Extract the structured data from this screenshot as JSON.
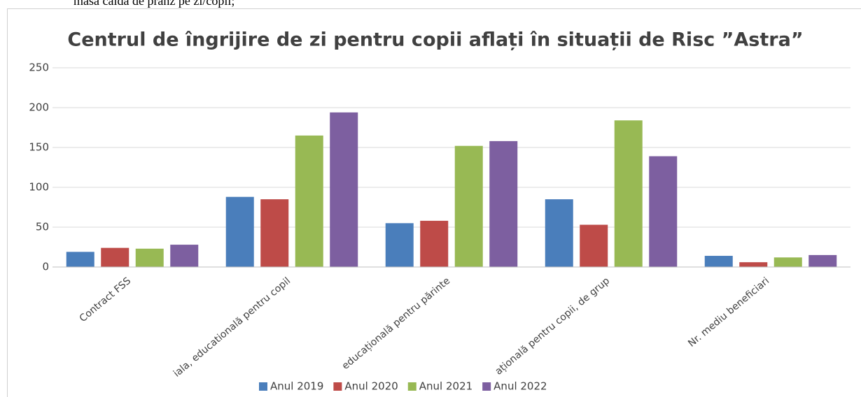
{
  "doc_text": "masa caldă de prânz pe zi/copil;",
  "chart_data": {
    "type": "bar",
    "title": "Centrul de îngrijire de zi pentru copii aflați în situații de Risc ”Astra”",
    "categories": [
      "Contract FSS",
      "iala, educatională pentru copil",
      "educațională pentru părinte",
      "ațională pentru copii, de grup",
      "Nr. mediu beneficiari"
    ],
    "series": [
      {
        "name": "Anul 2019",
        "color": "#4a7ebb",
        "values": [
          19,
          88,
          55,
          85,
          14
        ]
      },
      {
        "name": "Anul 2020",
        "color": "#be4b48",
        "values": [
          24,
          85,
          58,
          53,
          6
        ]
      },
      {
        "name": "Anul 2021",
        "color": "#98b954",
        "values": [
          23,
          165,
          152,
          184,
          12
        ]
      },
      {
        "name": "Anul 2022",
        "color": "#7d5fa0",
        "values": [
          28,
          194,
          158,
          139,
          15
        ]
      }
    ],
    "ylim": [
      0,
      250
    ],
    "yticks": [
      0,
      50,
      100,
      150,
      200,
      250
    ],
    "grid": true,
    "legend": "bottom"
  }
}
